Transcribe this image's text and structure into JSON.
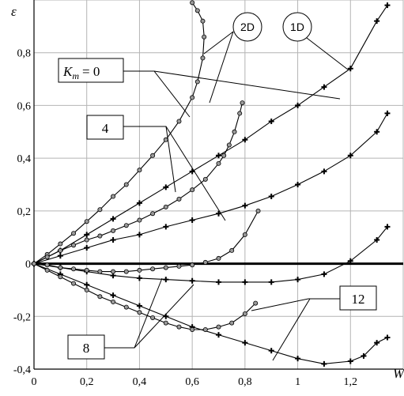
{
  "chart_data": {
    "type": "line",
    "title": "",
    "xlabel": "W",
    "ylabel": "ε",
    "xlim": [
      0,
      1.4
    ],
    "ylim": [
      -0.4,
      1.0
    ],
    "grid": true,
    "x_ticks": [
      "0",
      "0,2",
      "0,4",
      "0,6",
      "0,8",
      "1",
      "1,2"
    ],
    "y_ticks": [
      "-0,4",
      "-0,2",
      "0",
      "0,2",
      "0,4",
      "0,6",
      "0,8"
    ],
    "x_tick_values": [
      0,
      0.2,
      0.4,
      0.6,
      0.8,
      1.0,
      1.2
    ],
    "y_tick_values": [
      -0.4,
      -0.2,
      0,
      0.2,
      0.4,
      0.6,
      0.8
    ],
    "annotations": {
      "km0": "= 0",
      "km_symbol": "K",
      "km_sub": "m",
      "k4": "4",
      "k8": "8",
      "k12": "12",
      "d2": "2D",
      "d1": "1D"
    },
    "series": [
      {
        "group": "1D",
        "km": 0,
        "marker": "plus",
        "x": [
          0,
          0.1,
          0.2,
          0.3,
          0.4,
          0.5,
          0.6,
          0.7,
          0.8,
          0.9,
          1.0,
          1.1,
          1.2,
          1.3,
          1.34
        ],
        "y": [
          0,
          0.05,
          0.11,
          0.17,
          0.23,
          0.29,
          0.35,
          0.41,
          0.47,
          0.54,
          0.6,
          0.67,
          0.74,
          0.92,
          0.98
        ]
      },
      {
        "group": "1D",
        "km": 4,
        "marker": "plus",
        "x": [
          0,
          0.1,
          0.2,
          0.3,
          0.4,
          0.5,
          0.6,
          0.7,
          0.8,
          0.9,
          1.0,
          1.1,
          1.2,
          1.3,
          1.34
        ],
        "y": [
          0,
          0.03,
          0.06,
          0.09,
          0.11,
          0.14,
          0.165,
          0.19,
          0.22,
          0.255,
          0.3,
          0.35,
          0.41,
          0.5,
          0.57
        ]
      },
      {
        "group": "1D",
        "km": 8,
        "marker": "plus",
        "x": [
          0,
          0.1,
          0.2,
          0.3,
          0.4,
          0.5,
          0.6,
          0.7,
          0.8,
          0.9,
          1.0,
          1.1,
          1.2,
          1.3,
          1.34
        ],
        "y": [
          0,
          -0.015,
          -0.03,
          -0.045,
          -0.055,
          -0.06,
          -0.065,
          -0.07,
          -0.07,
          -0.07,
          -0.06,
          -0.04,
          0.01,
          0.09,
          0.14
        ]
      },
      {
        "group": "1D",
        "km": 12,
        "marker": "plus",
        "x": [
          0,
          0.1,
          0.2,
          0.3,
          0.4,
          0.5,
          0.6,
          0.7,
          0.8,
          0.9,
          1.0,
          1.1,
          1.2,
          1.25,
          1.3,
          1.34
        ],
        "y": [
          0,
          -0.04,
          -0.08,
          -0.12,
          -0.16,
          -0.2,
          -0.24,
          -0.27,
          -0.3,
          -0.33,
          -0.36,
          -0.38,
          -0.37,
          -0.35,
          -0.3,
          -0.28
        ]
      },
      {
        "group": "2D",
        "km": 0,
        "marker": "circle",
        "x": [
          0,
          0.05,
          0.1,
          0.15,
          0.2,
          0.25,
          0.3,
          0.35,
          0.4,
          0.45,
          0.5,
          0.55,
          0.6,
          0.62,
          0.64,
          0.645,
          0.64,
          0.62,
          0.6
        ],
        "y": [
          0,
          0.035,
          0.075,
          0.115,
          0.16,
          0.205,
          0.255,
          0.3,
          0.355,
          0.41,
          0.47,
          0.54,
          0.63,
          0.69,
          0.78,
          0.86,
          0.92,
          0.96,
          0.99
        ]
      },
      {
        "group": "2D",
        "km": 4,
        "marker": "circle",
        "x": [
          0,
          0.05,
          0.1,
          0.15,
          0.2,
          0.25,
          0.3,
          0.35,
          0.4,
          0.45,
          0.5,
          0.55,
          0.6,
          0.65,
          0.7,
          0.72,
          0.74,
          0.76,
          0.78,
          0.79
        ],
        "y": [
          0,
          0.025,
          0.05,
          0.07,
          0.09,
          0.105,
          0.125,
          0.145,
          0.165,
          0.19,
          0.215,
          0.245,
          0.28,
          0.32,
          0.38,
          0.41,
          0.45,
          0.5,
          0.57,
          0.61
        ]
      },
      {
        "group": "2D",
        "km": 8,
        "marker": "circle",
        "x": [
          0,
          0.05,
          0.1,
          0.15,
          0.2,
          0.25,
          0.3,
          0.35,
          0.4,
          0.45,
          0.5,
          0.55,
          0.6,
          0.65,
          0.7,
          0.75,
          0.8,
          0.85
        ],
        "y": [
          0,
          -0.005,
          -0.015,
          -0.02,
          -0.025,
          -0.03,
          -0.03,
          -0.03,
          -0.025,
          -0.02,
          -0.015,
          -0.01,
          -0.005,
          0.005,
          0.02,
          0.05,
          0.11,
          0.2
        ]
      },
      {
        "group": "2D",
        "km": 12,
        "marker": "circle",
        "x": [
          0,
          0.05,
          0.1,
          0.15,
          0.2,
          0.25,
          0.3,
          0.35,
          0.4,
          0.45,
          0.5,
          0.55,
          0.6,
          0.65,
          0.7,
          0.75,
          0.8,
          0.84
        ],
        "y": [
          0,
          -0.025,
          -0.05,
          -0.075,
          -0.1,
          -0.125,
          -0.145,
          -0.165,
          -0.185,
          -0.205,
          -0.225,
          -0.24,
          -0.25,
          -0.25,
          -0.24,
          -0.225,
          -0.19,
          -0.15
        ]
      }
    ]
  }
}
